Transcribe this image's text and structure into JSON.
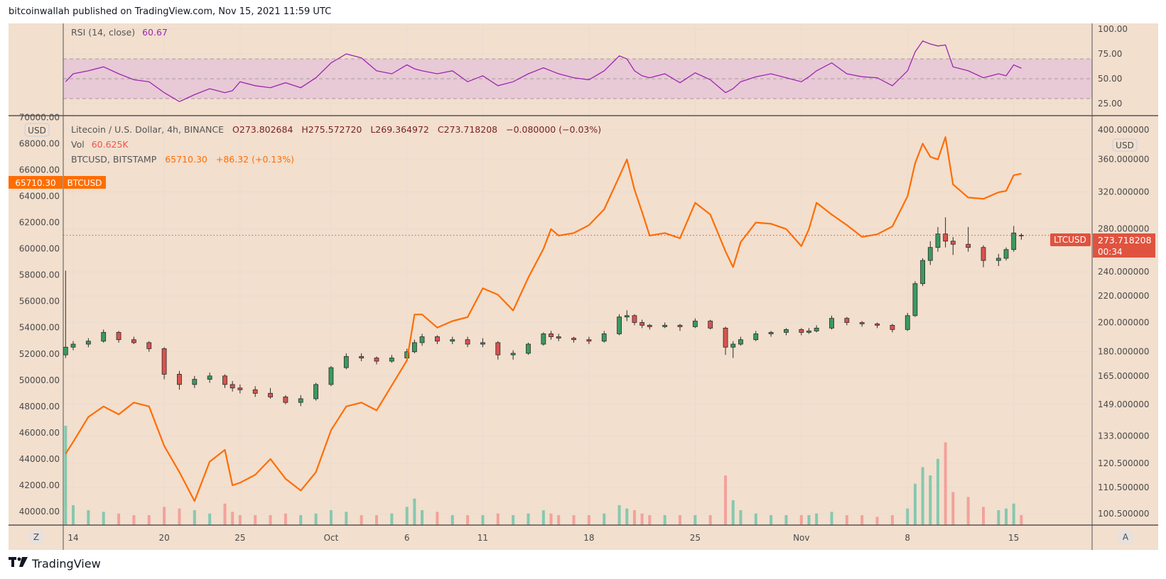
{
  "header": {
    "published_text": "bitcoinwallah published on TradingView.com, Nov 15, 2021 11:59 UTC"
  },
  "footer": {
    "brand": "TradingView",
    "logo_mark": "TV"
  },
  "colors": {
    "background": "#f2dfce",
    "btc_line": "#ff6d00",
    "rsi_line": "#9c27b0",
    "rsi_band": "#e8c9d6",
    "up": "#3b9a5e",
    "down": "#d9534f",
    "vol_up": "#86c8b0",
    "vol_down": "#f2a29b",
    "price_line": "#e0533f"
  },
  "legend": {
    "rsi_label": "RSI (14, close)",
    "rsi_value": "60.67",
    "ltc_label": "Litecoin / U.S. Dollar, 4h, BINANCE",
    "open": "O273.802684",
    "high": "H275.572720",
    "low": "L269.364972",
    "close": "C273.718208",
    "change": "−0.080000 (−0.03%)",
    "vol_label": "Vol",
    "vol_value": "60.625K",
    "btc_label": "BTCUSD, BITSTAMP",
    "btc_value": "65710.30",
    "btc_change": "+86.32 (+0.13%)"
  },
  "axes": {
    "left_currency": "USD",
    "right_currency": "USD",
    "left_ticks": [
      "70000.00",
      "68000.00",
      "66000.00",
      "64000.00",
      "62000.00",
      "60000.00",
      "58000.00",
      "56000.00",
      "54000.00",
      "52000.00",
      "50000.00",
      "48000.00",
      "46000.00",
      "44000.00",
      "42000.00",
      "40000.00"
    ],
    "right_ticks": [
      "400.000000",
      "360.000000",
      "320.000000",
      "280.000000",
      "240.000000",
      "220.000000",
      "200.000000",
      "180.000000",
      "165.000000",
      "149.000000",
      "133.000000",
      "120.500000",
      "110.500000",
      "100.500000"
    ],
    "rsi_ticks": [
      "100.00",
      "75.00",
      "50.00",
      "25.00"
    ],
    "time_ticks": [
      {
        "label": "14",
        "date": "2021-09-14"
      },
      {
        "label": "20",
        "date": "2021-09-20"
      },
      {
        "label": "25",
        "date": "2021-09-25"
      },
      {
        "label": "Oct",
        "date": "2021-10-01"
      },
      {
        "label": "6",
        "date": "2021-10-06"
      },
      {
        "label": "11",
        "date": "2021-10-11"
      },
      {
        "label": "18",
        "date": "2021-10-18"
      },
      {
        "label": "25",
        "date": "2021-10-25"
      },
      {
        "label": "Nov",
        "date": "2021-11-01"
      },
      {
        "label": "8",
        "date": "2021-11-08"
      },
      {
        "label": "15",
        "date": "2021-11-15"
      }
    ],
    "timezone_button": "Z",
    "auto_button": "A"
  },
  "price_tags": {
    "btc_value": "65710.30",
    "btc_symbol": "BTCUSD",
    "ltc_symbol": "LTCUSD",
    "ltc_value": "273.718208",
    "ltc_countdown": "00:34"
  },
  "chart_data": {
    "type": "candlestick+line",
    "left_axis": {
      "series": "BTCUSD",
      "ylim": [
        40000,
        70000
      ],
      "scale": "linear"
    },
    "right_axis": {
      "series": "LTCUSD",
      "ylim": [
        100.5,
        400
      ],
      "scale": "log"
    },
    "rsi": {
      "period": 14,
      "source": "close",
      "ylim": [
        0,
        100
      ],
      "bands": [
        30,
        50,
        70
      ]
    },
    "grid": true,
    "columns": [
      "date",
      "btc_close",
      "ltc_open",
      "ltc_high",
      "ltc_low",
      "ltc_close",
      "rsi",
      "volume_k"
    ],
    "rows": [
      [
        "2021-09-13 12:00",
        44400,
        178,
        241,
        176,
        183,
        47,
        600
      ],
      [
        "2021-09-14 00:00",
        45300,
        183,
        187,
        181,
        185,
        55,
        120
      ],
      [
        "2021-09-15 00:00",
        47200,
        185,
        189,
        183,
        187,
        58,
        90
      ],
      [
        "2021-09-16 00:00",
        48000,
        187,
        195,
        186,
        193,
        62,
        80
      ],
      [
        "2021-09-17 00:00",
        47400,
        193,
        194,
        186,
        188,
        55,
        70
      ],
      [
        "2021-09-18 00:00",
        48300,
        188,
        190,
        185,
        186,
        49,
        60
      ],
      [
        "2021-09-19 00:00",
        48000,
        186,
        187,
        180,
        182,
        47,
        60
      ],
      [
        "2021-09-20 00:00",
        45000,
        182,
        183,
        163,
        166,
        36,
        110
      ],
      [
        "2021-09-21 00:00",
        43000,
        166,
        168,
        157,
        160,
        27,
        100
      ],
      [
        "2021-09-22 00:00",
        40800,
        160,
        165,
        158,
        163,
        34,
        90
      ],
      [
        "2021-09-23 00:00",
        43800,
        163,
        167,
        161,
        165,
        40,
        70
      ],
      [
        "2021-09-24 00:00",
        44700,
        165,
        166,
        158,
        160,
        36,
        130
      ],
      [
        "2021-09-24 12:00",
        42000,
        160,
        162,
        156,
        158,
        38,
        80
      ],
      [
        "2021-09-25 00:00",
        42200,
        158,
        160,
        155,
        157,
        47,
        60
      ],
      [
        "2021-09-26 00:00",
        42800,
        157,
        159,
        153,
        155,
        43,
        60
      ],
      [
        "2021-09-27 00:00",
        44000,
        155,
        158,
        152,
        153,
        41,
        60
      ],
      [
        "2021-09-28 00:00",
        42500,
        153,
        154,
        149,
        150,
        46,
        70
      ],
      [
        "2021-09-29 00:00",
        41600,
        150,
        154,
        148,
        152,
        41,
        60
      ],
      [
        "2021-09-30 00:00",
        43000,
        152,
        161,
        151,
        160,
        51,
        70
      ],
      [
        "2021-10-01 00:00",
        46200,
        160,
        171,
        159,
        170,
        66,
        90
      ],
      [
        "2021-10-02 00:00",
        48000,
        170,
        179,
        169,
        177,
        75,
        80
      ],
      [
        "2021-10-03 00:00",
        48300,
        177,
        179,
        174,
        176,
        71,
        60
      ],
      [
        "2021-10-04 00:00",
        47700,
        176,
        177,
        172,
        174,
        58,
        60
      ],
      [
        "2021-10-05 00:00",
        49600,
        174,
        178,
        173,
        176,
        55,
        70
      ],
      [
        "2021-10-06 00:00",
        51500,
        176,
        182,
        174,
        180,
        64,
        110
      ],
      [
        "2021-10-06 12:00",
        55000,
        180,
        188,
        179,
        186,
        60,
        160
      ],
      [
        "2021-10-07 00:00",
        55000,
        186,
        192,
        184,
        190,
        58,
        90
      ],
      [
        "2021-10-08 00:00",
        54000,
        190,
        191,
        185,
        187,
        55,
        80
      ],
      [
        "2021-10-09 00:00",
        54500,
        187,
        190,
        185,
        188,
        58,
        60
      ],
      [
        "2021-10-10 00:00",
        54800,
        188,
        190,
        183,
        185,
        47,
        60
      ],
      [
        "2021-10-11 00:00",
        57000,
        185,
        189,
        183,
        186,
        53,
        60
      ],
      [
        "2021-10-12 00:00",
        56500,
        186,
        187,
        175,
        178,
        43,
        70
      ],
      [
        "2021-10-13 00:00",
        55300,
        178,
        181,
        175,
        179,
        47,
        60
      ],
      [
        "2021-10-14 00:00",
        57800,
        179,
        186,
        178,
        185,
        55,
        70
      ],
      [
        "2021-10-15 00:00",
        60000,
        185,
        193,
        184,
        192,
        61,
        90
      ],
      [
        "2021-10-15 12:00",
        61500,
        192,
        194,
        188,
        190,
        58,
        70
      ],
      [
        "2021-10-16 00:00",
        61000,
        190,
        192,
        187,
        189,
        55,
        60
      ],
      [
        "2021-10-17 00:00",
        61200,
        189,
        190,
        186,
        188,
        51,
        60
      ],
      [
        "2021-10-18 00:00",
        61800,
        188,
        190,
        185,
        187,
        49,
        60
      ],
      [
        "2021-10-19 00:00",
        63000,
        187,
        194,
        186,
        192,
        58,
        70
      ],
      [
        "2021-10-20 00:00",
        65500,
        192,
        206,
        191,
        204,
        73,
        120
      ],
      [
        "2021-10-20 12:00",
        66800,
        204,
        209,
        201,
        205,
        70,
        100
      ],
      [
        "2021-10-21 00:00",
        64500,
        205,
        206,
        198,
        200,
        58,
        90
      ],
      [
        "2021-10-21 12:00",
        62800,
        200,
        202,
        196,
        198,
        53,
        70
      ],
      [
        "2021-10-22 00:00",
        61000,
        198,
        199,
        195,
        197,
        51,
        60
      ],
      [
        "2021-10-23 00:00",
        61200,
        197,
        200,
        196,
        198,
        55,
        60
      ],
      [
        "2021-10-24 00:00",
        60800,
        198,
        199,
        194,
        197,
        46,
        60
      ],
      [
        "2021-10-25 00:00",
        63500,
        197,
        203,
        196,
        201,
        56,
        60
      ],
      [
        "2021-10-26 00:00",
        62600,
        201,
        202,
        195,
        196,
        49,
        60
      ],
      [
        "2021-10-27 00:00",
        59800,
        196,
        197,
        178,
        183,
        36,
        300
      ],
      [
        "2021-10-27 12:00",
        58600,
        183,
        187,
        176,
        185,
        40,
        150
      ],
      [
        "2021-10-28 00:00",
        60500,
        185,
        190,
        184,
        188,
        47,
        90
      ],
      [
        "2021-10-29 00:00",
        62000,
        188,
        194,
        187,
        192,
        52,
        70
      ],
      [
        "2021-10-30 00:00",
        61900,
        192,
        194,
        190,
        193,
        55,
        60
      ],
      [
        "2021-10-31 00:00",
        61500,
        193,
        196,
        191,
        195,
        51,
        60
      ],
      [
        "2021-11-01 00:00",
        60200,
        195,
        196,
        191,
        193,
        47,
        60
      ],
      [
        "2021-11-01 12:00",
        61500,
        193,
        196,
        192,
        194,
        52,
        60
      ],
      [
        "2021-11-02 00:00",
        63500,
        194,
        198,
        193,
        196,
        58,
        70
      ],
      [
        "2021-11-03 00:00",
        62600,
        196,
        205,
        195,
        203,
        66,
        80
      ],
      [
        "2021-11-04 00:00",
        61800,
        203,
        204,
        198,
        200,
        55,
        60
      ],
      [
        "2021-11-05 00:00",
        60900,
        200,
        201,
        197,
        199,
        52,
        60
      ],
      [
        "2021-11-06 00:00",
        61100,
        199,
        200,
        196,
        198,
        51,
        50
      ],
      [
        "2021-11-07 00:00",
        61700,
        198,
        199,
        193,
        195,
        43,
        60
      ],
      [
        "2021-11-08 00:00",
        64000,
        195,
        207,
        194,
        205,
        58,
        100
      ],
      [
        "2021-11-08 12:00",
        66500,
        205,
        232,
        204,
        230,
        77,
        250
      ],
      [
        "2021-11-09 00:00",
        68000,
        230,
        252,
        228,
        250,
        88,
        350
      ],
      [
        "2021-11-09 12:00",
        67000,
        250,
        268,
        246,
        262,
        85,
        300
      ],
      [
        "2021-11-10 00:00",
        66800,
        262,
        282,
        258,
        275,
        83,
        400
      ],
      [
        "2021-11-10 12:00",
        68500,
        275,
        292,
        262,
        268,
        84,
        500
      ],
      [
        "2021-11-11 00:00",
        64900,
        268,
        272,
        255,
        265,
        62,
        200
      ],
      [
        "2021-11-12 00:00",
        63900,
        265,
        282,
        258,
        262,
        58,
        170
      ],
      [
        "2021-11-13 00:00",
        63800,
        262,
        264,
        244,
        250,
        51,
        110
      ],
      [
        "2021-11-14 00:00",
        64300,
        250,
        256,
        245,
        252,
        55,
        90
      ],
      [
        "2021-11-14 12:00",
        64400,
        252,
        262,
        250,
        260,
        53,
        100
      ],
      [
        "2021-11-15 00:00",
        65600,
        260,
        283,
        258,
        276,
        64,
        130
      ],
      [
        "2021-11-15 12:00",
        65710.3,
        273.802684,
        275.57272,
        269.364972,
        273.718208,
        60.67,
        60.625
      ]
    ]
  }
}
